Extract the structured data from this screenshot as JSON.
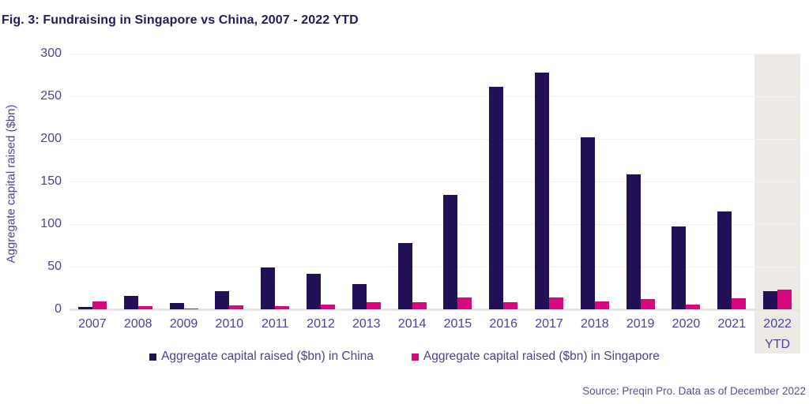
{
  "title": "Fig. 3: Fundraising in Singapore vs China, 2007 - 2022 YTD",
  "source": "Source: Preqin Pro. Data as of December 2022",
  "colors": {
    "china_bar": "#221156",
    "singapore_bar": "#d5087e",
    "axis_text": "#4c4296",
    "title_text": "#231a5e",
    "highlight_band": "#edeae6"
  },
  "chart_data": {
    "type": "bar",
    "title": "Fig. 3: Fundraising in Singapore vs China, 2007 - 2022 YTD",
    "xlabel": "",
    "ylabel": "Aggregate capital raised ($bn)",
    "ylim": [
      0,
      300
    ],
    "yticks": [
      0,
      50,
      100,
      150,
      200,
      250,
      300
    ],
    "grid": true,
    "legend_position": "bottom",
    "highlight_category": "2022 YTD",
    "categories": [
      "2007",
      "2008",
      "2009",
      "2010",
      "2011",
      "2012",
      "2013",
      "2014",
      "2015",
      "2016",
      "2017",
      "2018",
      "2019",
      "2020",
      "2021",
      "2022 YTD"
    ],
    "series": [
      {
        "name": "Aggregate capital raised ($bn) in China",
        "color": "#221156",
        "values": [
          3,
          16,
          7,
          21,
          49,
          42,
          30,
          78,
          134,
          261,
          278,
          202,
          158,
          97,
          115,
          21
        ]
      },
      {
        "name": "Aggregate capital raised ($bn) in Singapore",
        "color": "#d5087e",
        "values": [
          9,
          4,
          1,
          5,
          4,
          6,
          8,
          8,
          14,
          8,
          14,
          9,
          12,
          6,
          13,
          23
        ]
      }
    ]
  }
}
